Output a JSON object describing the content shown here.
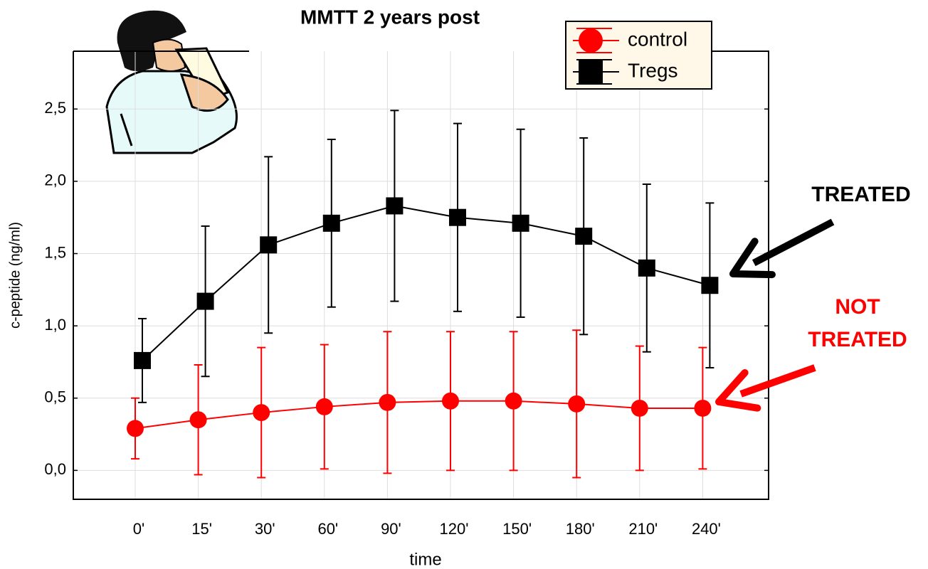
{
  "chart_data": {
    "type": "line",
    "title": "MMTT 2 years post",
    "x_label": "time",
    "y_label": "c-peptide (ng/ml)",
    "categories": [
      "0'",
      "15'",
      "30'",
      "60'",
      "90'",
      "120'",
      "150'",
      "180'",
      "210'",
      "240'"
    ],
    "series": [
      {
        "name": "control",
        "color": "#ff0000",
        "marker": "circle",
        "values": [
          0.29,
          0.35,
          0.4,
          0.44,
          0.47,
          0.48,
          0.48,
          0.46,
          0.43,
          0.43
        ],
        "errors": [
          0.21,
          0.38,
          0.45,
          0.43,
          0.49,
          0.48,
          0.48,
          0.51,
          0.43,
          0.42
        ]
      },
      {
        "name": "Tregs",
        "color": "#000000",
        "marker": "square",
        "values": [
          0.76,
          1.17,
          1.56,
          1.71,
          1.83,
          1.75,
          1.71,
          1.62,
          1.4,
          1.28
        ],
        "errors": [
          0.29,
          0.52,
          0.61,
          0.58,
          0.66,
          0.65,
          0.65,
          0.68,
          0.58,
          0.57
        ]
      }
    ],
    "ylim": [
      -0.2,
      2.9
    ],
    "yticks": [
      {
        "value": 0,
        "label": "0,0"
      },
      {
        "value": 0.5,
        "label": "0,5"
      },
      {
        "value": 1,
        "label": "1,0"
      },
      {
        "value": 1.5,
        "label": "1,5"
      },
      {
        "value": 2,
        "label": "2,0"
      },
      {
        "value": 2.5,
        "label": "2,5"
      }
    ],
    "grid": true,
    "legend": "top-right",
    "annotations": [
      {
        "lines": [
          "TREATED"
        ],
        "color": "#000000"
      },
      {
        "lines": [
          "NOT",
          "TREATED"
        ],
        "color": "#ff0000"
      }
    ]
  }
}
